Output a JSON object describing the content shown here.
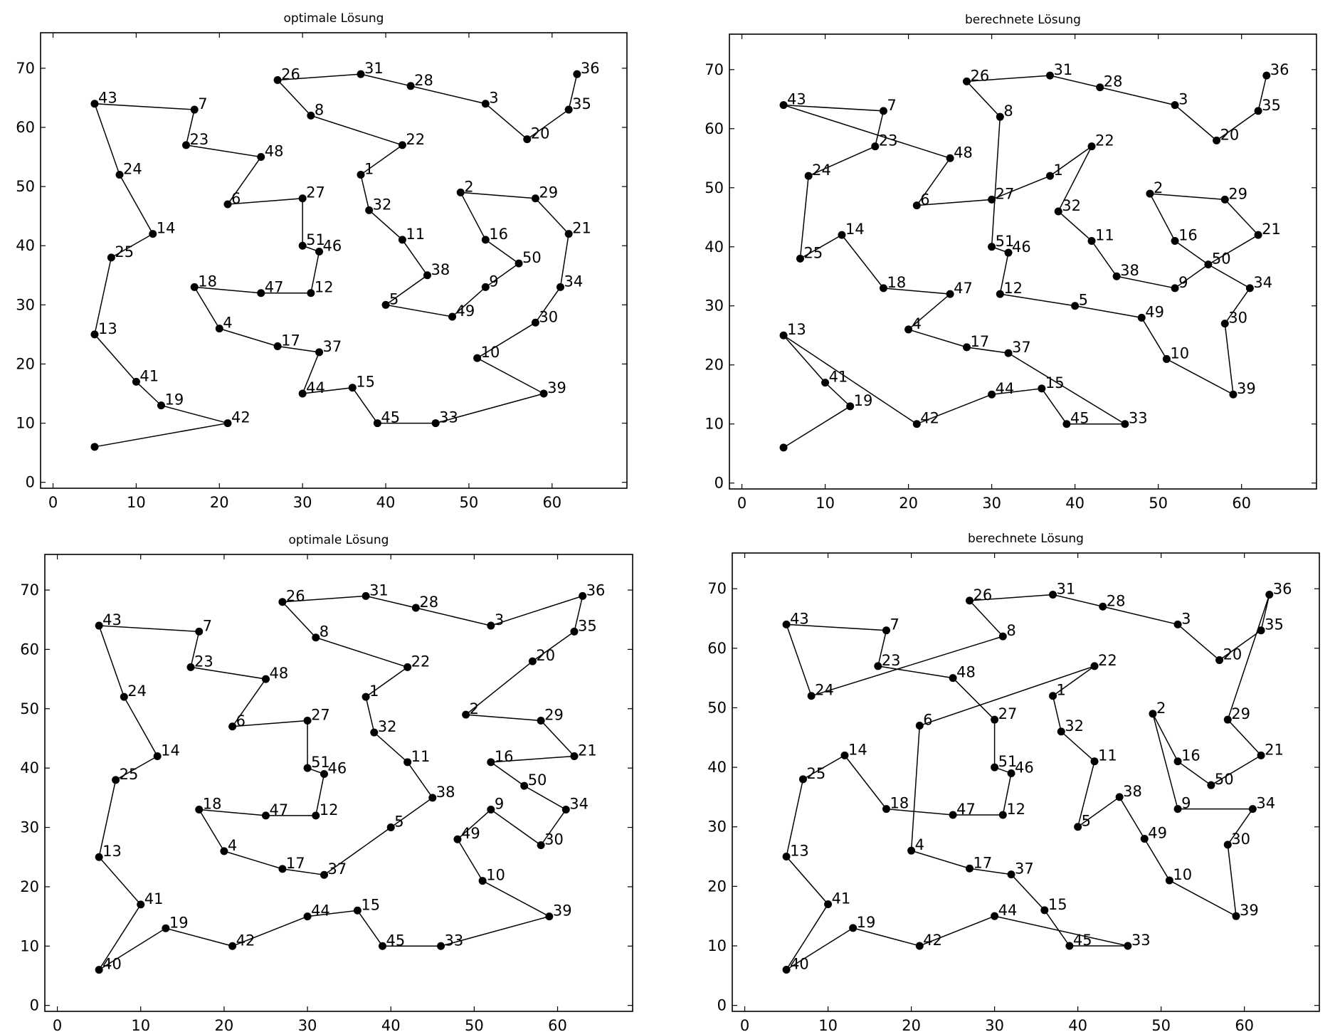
{
  "chart_data": [
    {
      "type": "scatter",
      "title": "optimale Lösung",
      "xlim": [
        -1.5,
        69
      ],
      "ylim": [
        -1,
        76
      ],
      "xticks": [
        0,
        10,
        20,
        30,
        40,
        50,
        60
      ],
      "yticks": [
        0,
        10,
        20,
        30,
        40,
        50,
        60,
        70
      ],
      "grid": false,
      "points": [
        {
          "x": 5,
          "y": 6,
          "label": ""
        },
        {
          "x": 21,
          "y": 10,
          "label": "42"
        },
        {
          "x": 13,
          "y": 13,
          "label": "19"
        },
        {
          "x": 10,
          "y": 17,
          "label": "41"
        },
        {
          "x": 5,
          "y": 25,
          "label": "13"
        },
        {
          "x": 7,
          "y": 38,
          "label": "25"
        },
        {
          "x": 12,
          "y": 42,
          "label": "14"
        },
        {
          "x": 8,
          "y": 52,
          "label": "24"
        },
        {
          "x": 5,
          "y": 64,
          "label": "43"
        },
        {
          "x": 17,
          "y": 63,
          "label": "7"
        },
        {
          "x": 16,
          "y": 57,
          "label": "23"
        },
        {
          "x": 25,
          "y": 55,
          "label": "48"
        },
        {
          "x": 21,
          "y": 47,
          "label": "6"
        },
        {
          "x": 30,
          "y": 48,
          "label": "27"
        },
        {
          "x": 30,
          "y": 40,
          "label": "51"
        },
        {
          "x": 32,
          "y": 39,
          "label": "46"
        },
        {
          "x": 31,
          "y": 32,
          "label": "12"
        },
        {
          "x": 25,
          "y": 32,
          "label": "47"
        },
        {
          "x": 17,
          "y": 33,
          "label": "18"
        },
        {
          "x": 20,
          "y": 26,
          "label": "4"
        },
        {
          "x": 27,
          "y": 23,
          "label": "17"
        },
        {
          "x": 32,
          "y": 22,
          "label": "37"
        },
        {
          "x": 30,
          "y": 15,
          "label": "44"
        },
        {
          "x": 36,
          "y": 16,
          "label": "15"
        },
        {
          "x": 39,
          "y": 10,
          "label": "45"
        },
        {
          "x": 46,
          "y": 10,
          "label": "33"
        },
        {
          "x": 59,
          "y": 15,
          "label": "39"
        },
        {
          "x": 51,
          "y": 21,
          "label": "10"
        },
        {
          "x": 58,
          "y": 27,
          "label": "30"
        },
        {
          "x": 61,
          "y": 33,
          "label": "34"
        },
        {
          "x": 62,
          "y": 42,
          "label": "21"
        },
        {
          "x": 58,
          "y": 48,
          "label": "29"
        },
        {
          "x": 49,
          "y": 49,
          "label": "2"
        },
        {
          "x": 52,
          "y": 41,
          "label": "16"
        },
        {
          "x": 56,
          "y": 37,
          "label": "50"
        },
        {
          "x": 52,
          "y": 33,
          "label": "9"
        },
        {
          "x": 48,
          "y": 28,
          "label": "49"
        },
        {
          "x": 40,
          "y": 30,
          "label": "5"
        },
        {
          "x": 45,
          "y": 35,
          "label": "38"
        },
        {
          "x": 42,
          "y": 41,
          "label": "11"
        },
        {
          "x": 38,
          "y": 46,
          "label": "32"
        },
        {
          "x": 37,
          "y": 52,
          "label": "1"
        },
        {
          "x": 42,
          "y": 57,
          "label": "22"
        },
        {
          "x": 31,
          "y": 62,
          "label": "8"
        },
        {
          "x": 27,
          "y": 68,
          "label": "26"
        },
        {
          "x": 37,
          "y": 69,
          "label": "31"
        },
        {
          "x": 43,
          "y": 67,
          "label": "28"
        },
        {
          "x": 52,
          "y": 64,
          "label": "3"
        },
        {
          "x": 57,
          "y": 58,
          "label": "20"
        },
        {
          "x": 62,
          "y": 63,
          "label": "35"
        },
        {
          "x": 63,
          "y": 69,
          "label": "36"
        }
      ],
      "closed": false
    },
    {
      "type": "scatter",
      "title": "berechnete Lösung",
      "xlim": [
        -1.5,
        69
      ],
      "ylim": [
        -1,
        76
      ],
      "xticks": [
        0,
        10,
        20,
        30,
        40,
        50,
        60
      ],
      "yticks": [
        0,
        10,
        20,
        30,
        40,
        50,
        60,
        70
      ],
      "grid": false,
      "points": [
        {
          "x": 5,
          "y": 6,
          "label": ""
        },
        {
          "x": 13,
          "y": 13,
          "label": "19"
        },
        {
          "x": 10,
          "y": 17,
          "label": "41"
        },
        {
          "x": 5,
          "y": 25,
          "label": "13"
        },
        {
          "x": 21,
          "y": 10,
          "label": "42"
        },
        {
          "x": 30,
          "y": 15,
          "label": "44"
        },
        {
          "x": 36,
          "y": 16,
          "label": "15"
        },
        {
          "x": 39,
          "y": 10,
          "label": "45"
        },
        {
          "x": 46,
          "y": 10,
          "label": "33"
        },
        {
          "x": 32,
          "y": 22,
          "label": "37"
        },
        {
          "x": 27,
          "y": 23,
          "label": "17"
        },
        {
          "x": 20,
          "y": 26,
          "label": "4"
        },
        {
          "x": 25,
          "y": 32,
          "label": "47"
        },
        {
          "x": 17,
          "y": 33,
          "label": "18"
        },
        {
          "x": 12,
          "y": 42,
          "label": "14"
        },
        {
          "x": 7,
          "y": 38,
          "label": "25"
        },
        {
          "x": 8,
          "y": 52,
          "label": "24"
        },
        {
          "x": 16,
          "y": 57,
          "label": "23"
        },
        {
          "x": 17,
          "y": 63,
          "label": "7"
        },
        {
          "x": 5,
          "y": 64,
          "label": "43"
        },
        {
          "x": 25,
          "y": 55,
          "label": "48"
        },
        {
          "x": 21,
          "y": 47,
          "label": "6"
        },
        {
          "x": 30,
          "y": 48,
          "label": "27"
        },
        {
          "x": 37,
          "y": 52,
          "label": "1"
        },
        {
          "x": 42,
          "y": 57,
          "label": "22"
        },
        {
          "x": 38,
          "y": 46,
          "label": "32"
        },
        {
          "x": 42,
          "y": 41,
          "label": "11"
        },
        {
          "x": 45,
          "y": 35,
          "label": "38"
        },
        {
          "x": 52,
          "y": 33,
          "label": "9"
        },
        {
          "x": 56,
          "y": 37,
          "label": "50"
        },
        {
          "x": 61,
          "y": 33,
          "label": "34"
        },
        {
          "x": 58,
          "y": 27,
          "label": "30"
        },
        {
          "x": 59,
          "y": 15,
          "label": "39"
        },
        {
          "x": 51,
          "y": 21,
          "label": "10"
        },
        {
          "x": 48,
          "y": 28,
          "label": "49"
        },
        {
          "x": 40,
          "y": 30,
          "label": "5"
        },
        {
          "x": 31,
          "y": 32,
          "label": "12"
        },
        {
          "x": 32,
          "y": 39,
          "label": "46"
        },
        {
          "x": 30,
          "y": 40,
          "label": "51"
        },
        {
          "x": 31,
          "y": 62,
          "label": "8"
        },
        {
          "x": 27,
          "y": 68,
          "label": "26"
        },
        {
          "x": 37,
          "y": 69,
          "label": "31"
        },
        {
          "x": 43,
          "y": 67,
          "label": "28"
        },
        {
          "x": 52,
          "y": 64,
          "label": "3"
        },
        {
          "x": 57,
          "y": 58,
          "label": "20"
        },
        {
          "x": 62,
          "y": 63,
          "label": "35"
        },
        {
          "x": 63,
          "y": 69,
          "label": "36"
        }
      ],
      "extra_paths": [
        [
          {
            "x": 49,
            "y": 49
          },
          {
            "x": 58,
            "y": 48
          },
          {
            "x": 62,
            "y": 42
          },
          {
            "x": 56,
            "y": 37
          },
          {
            "x": 52,
            "y": 41
          },
          {
            "x": 49,
            "y": 49
          }
        ]
      ],
      "extra_points": [
        {
          "x": 49,
          "y": 49,
          "label": "2"
        },
        {
          "x": 58,
          "y": 48,
          "label": "29"
        },
        {
          "x": 62,
          "y": 42,
          "label": "21"
        },
        {
          "x": 52,
          "y": 41,
          "label": "16"
        }
      ],
      "closed": false
    },
    {
      "type": "scatter",
      "title": "optimale Lösung",
      "xlim": [
        -1.5,
        69
      ],
      "ylim": [
        -1,
        76
      ],
      "xticks": [
        0,
        10,
        20,
        30,
        40,
        50,
        60
      ],
      "yticks": [
        0,
        10,
        20,
        30,
        40,
        50,
        60,
        70
      ],
      "grid": false,
      "points": [
        {
          "x": 5,
          "y": 6,
          "label": "40"
        },
        {
          "x": 13,
          "y": 13,
          "label": "19"
        },
        {
          "x": 21,
          "y": 10,
          "label": "42"
        },
        {
          "x": 30,
          "y": 15,
          "label": "44"
        },
        {
          "x": 36,
          "y": 16,
          "label": "15"
        },
        {
          "x": 39,
          "y": 10,
          "label": "45"
        },
        {
          "x": 46,
          "y": 10,
          "label": "33"
        },
        {
          "x": 59,
          "y": 15,
          "label": "39"
        },
        {
          "x": 51,
          "y": 21,
          "label": "10"
        },
        {
          "x": 48,
          "y": 28,
          "label": "49"
        },
        {
          "x": 52,
          "y": 33,
          "label": "9"
        },
        {
          "x": 58,
          "y": 27,
          "label": "30"
        },
        {
          "x": 61,
          "y": 33,
          "label": "34"
        },
        {
          "x": 56,
          "y": 37,
          "label": "50"
        },
        {
          "x": 52,
          "y": 41,
          "label": "16"
        },
        {
          "x": 62,
          "y": 42,
          "label": "21"
        },
        {
          "x": 58,
          "y": 48,
          "label": "29"
        },
        {
          "x": 49,
          "y": 49,
          "label": "2"
        },
        {
          "x": 57,
          "y": 58,
          "label": "20"
        },
        {
          "x": 62,
          "y": 63,
          "label": "35"
        },
        {
          "x": 63,
          "y": 69,
          "label": "36"
        },
        {
          "x": 52,
          "y": 64,
          "label": "3"
        },
        {
          "x": 43,
          "y": 67,
          "label": "28"
        },
        {
          "x": 37,
          "y": 69,
          "label": "31"
        },
        {
          "x": 27,
          "y": 68,
          "label": "26"
        },
        {
          "x": 31,
          "y": 62,
          "label": "8"
        },
        {
          "x": 42,
          "y": 57,
          "label": "22"
        },
        {
          "x": 37,
          "y": 52,
          "label": "1"
        },
        {
          "x": 38,
          "y": 46,
          "label": "32"
        },
        {
          "x": 42,
          "y": 41,
          "label": "11"
        },
        {
          "x": 45,
          "y": 35,
          "label": "38"
        },
        {
          "x": 40,
          "y": 30,
          "label": "5"
        },
        {
          "x": 32,
          "y": 22,
          "label": "37"
        },
        {
          "x": 27,
          "y": 23,
          "label": "17"
        },
        {
          "x": 20,
          "y": 26,
          "label": "4"
        },
        {
          "x": 17,
          "y": 33,
          "label": "18"
        },
        {
          "x": 25,
          "y": 32,
          "label": "47"
        },
        {
          "x": 31,
          "y": 32,
          "label": "12"
        },
        {
          "x": 32,
          "y": 39,
          "label": "46"
        },
        {
          "x": 30,
          "y": 40,
          "label": "51"
        },
        {
          "x": 30,
          "y": 48,
          "label": "27"
        },
        {
          "x": 21,
          "y": 47,
          "label": "6"
        },
        {
          "x": 25,
          "y": 55,
          "label": "48"
        },
        {
          "x": 16,
          "y": 57,
          "label": "23"
        },
        {
          "x": 17,
          "y": 63,
          "label": "7"
        },
        {
          "x": 5,
          "y": 64,
          "label": "43"
        },
        {
          "x": 8,
          "y": 52,
          "label": "24"
        },
        {
          "x": 12,
          "y": 42,
          "label": "14"
        },
        {
          "x": 7,
          "y": 38,
          "label": "25"
        },
        {
          "x": 5,
          "y": 25,
          "label": "13"
        },
        {
          "x": 10,
          "y": 17,
          "label": "41"
        }
      ],
      "closed": true
    },
    {
      "type": "scatter",
      "title": "berechnete Lösung",
      "xlim": [
        -1.5,
        69
      ],
      "ylim": [
        -1,
        76
      ],
      "xticks": [
        0,
        10,
        20,
        30,
        40,
        50,
        60
      ],
      "yticks": [
        0,
        10,
        20,
        30,
        40,
        50,
        60,
        70
      ],
      "grid": false,
      "points": [
        {
          "x": 5,
          "y": 6,
          "label": "40"
        },
        {
          "x": 13,
          "y": 13,
          "label": "19"
        },
        {
          "x": 21,
          "y": 10,
          "label": "42"
        },
        {
          "x": 30,
          "y": 15,
          "label": "44"
        },
        {
          "x": 46,
          "y": 10,
          "label": "33"
        },
        {
          "x": 39,
          "y": 10,
          "label": "45"
        },
        {
          "x": 36,
          "y": 16,
          "label": "15"
        },
        {
          "x": 32,
          "y": 22,
          "label": "37"
        },
        {
          "x": 27,
          "y": 23,
          "label": "17"
        },
        {
          "x": 20,
          "y": 26,
          "label": "4"
        },
        {
          "x": 21,
          "y": 47,
          "label": "6"
        },
        {
          "x": 42,
          "y": 57,
          "label": "22"
        },
        {
          "x": 37,
          "y": 52,
          "label": "1"
        },
        {
          "x": 38,
          "y": 46,
          "label": "32"
        },
        {
          "x": 42,
          "y": 41,
          "label": "11"
        },
        {
          "x": 40,
          "y": 30,
          "label": "5"
        },
        {
          "x": 45,
          "y": 35,
          "label": "38"
        },
        {
          "x": 48,
          "y": 28,
          "label": "49"
        },
        {
          "x": 51,
          "y": 21,
          "label": "10"
        },
        {
          "x": 59,
          "y": 15,
          "label": "39"
        },
        {
          "x": 58,
          "y": 27,
          "label": "30"
        },
        {
          "x": 61,
          "y": 33,
          "label": "34"
        },
        {
          "x": 52,
          "y": 33,
          "label": "9"
        },
        {
          "x": 49,
          "y": 49,
          "label": "2"
        },
        {
          "x": 52,
          "y": 41,
          "label": "16"
        },
        {
          "x": 56,
          "y": 37,
          "label": "50"
        },
        {
          "x": 62,
          "y": 42,
          "label": "21"
        },
        {
          "x": 58,
          "y": 48,
          "label": "29"
        },
        {
          "x": 63,
          "y": 69,
          "label": "36"
        },
        {
          "x": 62,
          "y": 63,
          "label": "35"
        },
        {
          "x": 57,
          "y": 58,
          "label": "20"
        },
        {
          "x": 52,
          "y": 64,
          "label": "3"
        },
        {
          "x": 43,
          "y": 67,
          "label": "28"
        },
        {
          "x": 37,
          "y": 69,
          "label": "31"
        },
        {
          "x": 27,
          "y": 68,
          "label": "26"
        },
        {
          "x": 31,
          "y": 62,
          "label": "8"
        },
        {
          "x": 8,
          "y": 52,
          "label": "24"
        },
        {
          "x": 5,
          "y": 64,
          "label": "43"
        },
        {
          "x": 17,
          "y": 63,
          "label": "7"
        },
        {
          "x": 16,
          "y": 57,
          "label": "23"
        },
        {
          "x": 25,
          "y": 55,
          "label": "48"
        },
        {
          "x": 30,
          "y": 48,
          "label": "27"
        },
        {
          "x": 30,
          "y": 40,
          "label": "51"
        },
        {
          "x": 32,
          "y": 39,
          "label": "46"
        },
        {
          "x": 31,
          "y": 32,
          "label": "12"
        },
        {
          "x": 25,
          "y": 32,
          "label": "47"
        },
        {
          "x": 17,
          "y": 33,
          "label": "18"
        },
        {
          "x": 12,
          "y": 42,
          "label": "14"
        },
        {
          "x": 7,
          "y": 38,
          "label": "25"
        },
        {
          "x": 5,
          "y": 25,
          "label": "13"
        },
        {
          "x": 10,
          "y": 17,
          "label": "41"
        }
      ],
      "closed": true
    }
  ]
}
